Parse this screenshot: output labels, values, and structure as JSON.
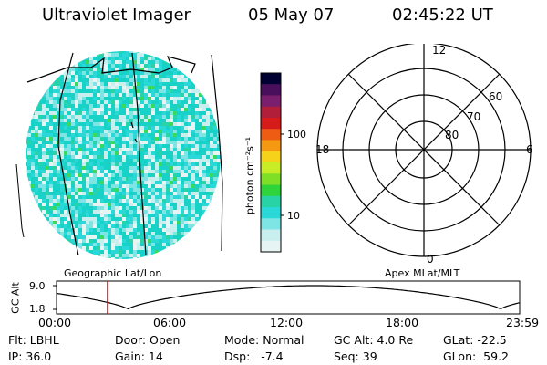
{
  "header": {
    "title": "Ultraviolet Imager",
    "date": "05 May 07",
    "time": "02:45:22 UT"
  },
  "colorbar": {
    "unit_label": "photon cm⁻²s⁻¹",
    "ticks": [
      "100",
      "10"
    ],
    "colors": [
      "#000033",
      "#4a0f5c",
      "#7a1f6e",
      "#b01e3a",
      "#d61b1b",
      "#ee5c14",
      "#f59a10",
      "#f6d21a",
      "#c8ec26",
      "#7fdf26",
      "#2fd33a",
      "#28d4a6",
      "#2bd8d8",
      "#7fe4e4",
      "#c8eeee",
      "#e6f4f4"
    ]
  },
  "left_panel": {
    "caption": "Geographic Lat/Lon",
    "pixel_colors": [
      "#18d2c8",
      "#2bd8d8",
      "#7fe4e4",
      "#c8eeee",
      "#e6f4f4",
      "#28d4a6",
      "#37da5a"
    ]
  },
  "polar_plot": {
    "caption": "Apex MLat/MLT",
    "mlt_labels": [
      "12",
      "18",
      "6",
      "0"
    ],
    "lat_labels": [
      "60",
      "70",
      "80"
    ]
  },
  "timeline": {
    "axis_label": "GC Alt",
    "ymax_label": "9.0",
    "ymin_label": "1.8",
    "time_ticks": [
      "00:00",
      "06:00",
      "12:00",
      "18:00",
      "23:59"
    ],
    "marker_color": "#cc0000"
  },
  "footer": {
    "row1": [
      "Flt: LBHL",
      "Door: Open",
      "Mode: Normal",
      "GC Alt: 4.0 Re",
      "GLat: -22.5"
    ],
    "row2": [
      "IP: 36.0",
      "Gain: 14",
      "Dsp:   -7.4",
      "Seq: 39",
      "GLon:  59.2"
    ]
  }
}
